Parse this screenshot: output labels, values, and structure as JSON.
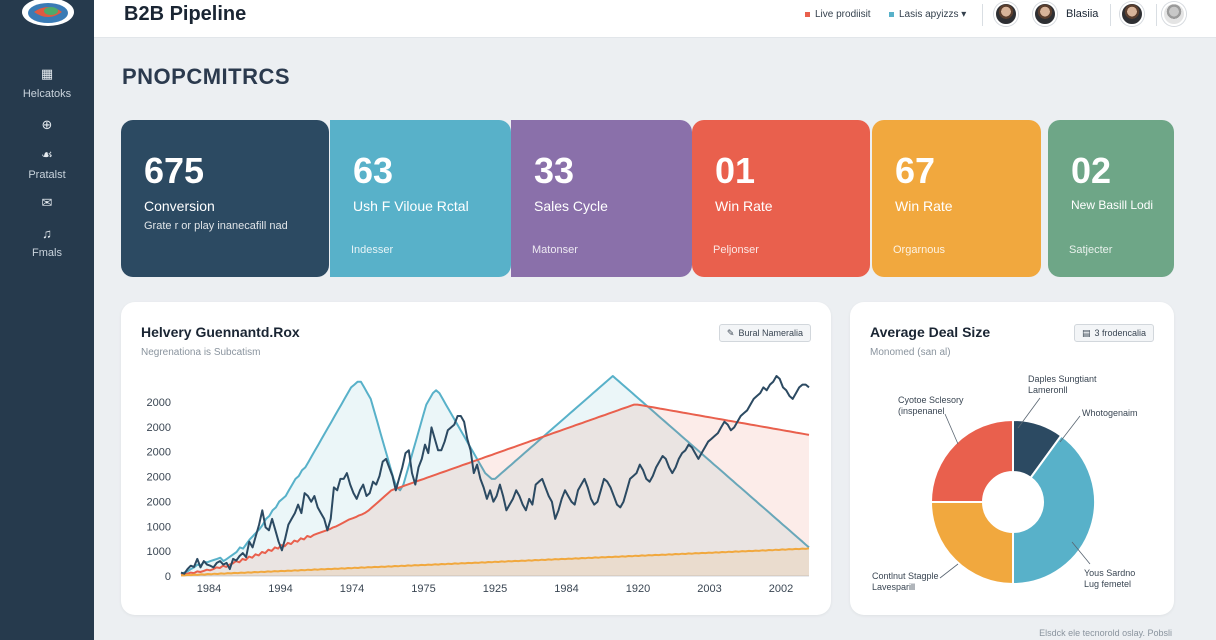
{
  "colors": {
    "sidebar": "#263a4d",
    "navy": "#2c4a62",
    "teal": "#58b1c9",
    "purple": "#8a70aa",
    "red": "#e9604d",
    "orange": "#f1a83e",
    "green": "#6ea687"
  },
  "topbar": {
    "app_title": "B2B Pipeline",
    "legend": [
      {
        "label": "Live prodiisit",
        "color": "#e9604d"
      },
      {
        "label": "Lasis apyizzs",
        "color": "#58b1c9"
      }
    ],
    "user_name": "Blasiia"
  },
  "sidebar": {
    "logo": "logo-icon",
    "items": [
      {
        "icon": "grid-icon",
        "glyph": "▦",
        "label": "Helcatoks"
      },
      {
        "icon": "target-icon",
        "glyph": "⊕",
        "label": ""
      },
      {
        "icon": "people-icon",
        "glyph": "☙",
        "label": "Pratalst"
      },
      {
        "icon": "mail-icon",
        "glyph": "✉",
        "label": ""
      },
      {
        "icon": "music-icon",
        "glyph": "♫",
        "label": "Fmals"
      }
    ]
  },
  "section_title": "PNOPCMITRCS",
  "kpis": [
    {
      "value": "675",
      "label": "Conversion",
      "sub": "Grate r or play inanecafill nad",
      "foot": "",
      "color": "#2c4a62"
    },
    {
      "value": "63",
      "label": "Ush F Viloue Rctal",
      "sub": "",
      "foot": "Indesser",
      "color": "#58b1c9"
    },
    {
      "value": "33",
      "label": "Sales Cycle",
      "sub": "",
      "foot": "Matonser",
      "color": "#8a70aa"
    },
    {
      "value": "01",
      "label": "Win Rate",
      "sub": "",
      "foot": "Peljonser",
      "color": "#e9604d"
    },
    {
      "value": "67",
      "label": "Win Rate",
      "sub": "",
      "foot": "Orgarnous",
      "color": "#f1a83e"
    },
    {
      "value": "02",
      "label": "New Basill Lodi",
      "sub": "",
      "foot": "Satjecter",
      "color": "#6ea687"
    }
  ],
  "line_card": {
    "title": "Helvery Guennantd.Rox",
    "subtitle": "Negrenationa is Subcatism",
    "chip": "Bural Nameralia",
    "chip_icon": "tag-icon"
  },
  "pie_card": {
    "title": "Average Deal Size",
    "subtitle": "Monomed (san al)",
    "chip": "3 frodencalia",
    "chip_icon": "list-icon"
  },
  "footer": "Elsdck ele tecnorold oslay.  Pobsli",
  "chart_data": [
    {
      "type": "area",
      "title": "Helvery Guennantd.Rox",
      "xlabel": "",
      "ylabel": "",
      "x_tick_labels": [
        "1984",
        "1994",
        "1974",
        "1975",
        "1925",
        "1984",
        "1920",
        "2003",
        "2002"
      ],
      "y_tick_labels": [
        "0",
        "1000",
        "1000",
        "2000",
        "2000",
        "2000",
        "2000",
        "2000"
      ],
      "ylim": [
        0,
        3500
      ],
      "series": [
        {
          "name": "navy",
          "color": "#2c4a62",
          "fill": false,
          "values": [
            60,
            40,
            120,
            180,
            160,
            300,
            150,
            260,
            200,
            180,
            150,
            230,
            260,
            200,
            230,
            120,
            300,
            270,
            350,
            400,
            330,
            600,
            500,
            700,
            900,
            1150,
            850,
            800,
            1000,
            800,
            600,
            450,
            650,
            900,
            1000,
            1100,
            1250,
            1100,
            1450,
            1400,
            1300,
            1400,
            1200,
            1100,
            1000,
            800,
            1000,
            1550,
            1500,
            1700,
            1700,
            1800,
            1600,
            1450,
            1350,
            1500,
            1600,
            1400,
            1450,
            1650,
            1600,
            1750,
            2000,
            2050,
            1900,
            1750,
            1500,
            1700,
            1900,
            2150,
            2200,
            1800,
            1600,
            1900,
            2050,
            2300,
            2150,
            2600,
            2400,
            2200,
            2200,
            2350,
            2550,
            2600,
            2650,
            2800,
            2800,
            2700,
            2400,
            2200,
            1800,
            1950,
            1700,
            1550,
            1350,
            1500,
            1300,
            1400,
            1600,
            1400,
            1150,
            1250,
            1350,
            1500,
            1400,
            1250,
            1150,
            1350,
            1250,
            1600,
            1650,
            1700,
            1550,
            1400,
            1300,
            1000,
            1150,
            1350,
            1500,
            1400,
            1300,
            1250,
            1500,
            1600,
            1700,
            1550,
            1350,
            1250,
            1300,
            1500,
            1700,
            1650,
            1550,
            1400,
            1250,
            1200,
            1300,
            1500,
            1700,
            1750,
            1800,
            1950,
            1850,
            1700,
            1650,
            1750,
            1900,
            2000,
            2100,
            2050,
            1900,
            1800,
            1900,
            2050,
            2150,
            2200,
            2300,
            2250,
            2150,
            2050,
            2150,
            2250,
            2350,
            2400,
            2450,
            2500,
            2600,
            2700,
            2650,
            2550,
            2600,
            2700,
            2800,
            2850,
            2900,
            3000,
            3100,
            3150,
            3200,
            3300,
            3250,
            3350,
            3400,
            3500,
            3450,
            3300,
            3250,
            3150,
            3100,
            3200,
            3300,
            3350,
            3350,
            3300
          ]
        },
        {
          "name": "teal",
          "color": "#58b1c9",
          "fill": true,
          "values": [
            40,
            60,
            80,
            120,
            150,
            200,
            180,
            250,
            240,
            260,
            280,
            300,
            320,
            260,
            300,
            340,
            380,
            420,
            500,
            480,
            560,
            640,
            700,
            760,
            820,
            900,
            1000,
            1050,
            1150,
            1200,
            1300,
            1350,
            1400,
            1500,
            1600,
            1700,
            1750,
            1850,
            1900,
            2000,
            2100,
            2200,
            2300,
            2400,
            2500,
            2600,
            2700,
            2800,
            2900,
            3000,
            3100,
            3200,
            3300,
            3350,
            3400,
            3400,
            3300,
            3200,
            3100,
            2900,
            2700,
            2500,
            2300,
            2100,
            1900,
            1700,
            1550,
            1500,
            1600,
            1800,
            2000,
            2200,
            2400,
            2600,
            2800,
            3000,
            3100,
            3200,
            3250,
            3200,
            3100,
            3000,
            2900,
            2800,
            2700,
            2600,
            2500,
            2400,
            2300,
            2200,
            2100,
            2000,
            1900,
            1800,
            1750,
            1700,
            1700,
            1750,
            1800,
            1850,
            1900,
            1950,
            2000,
            2050,
            2100,
            2150,
            2200,
            2250,
            2300,
            2350,
            2400,
            2450,
            2500,
            2550,
            2600,
            2650,
            2700,
            2750,
            2800,
            2850,
            2900,
            2950,
            3000,
            3050,
            3100,
            3150,
            3200,
            3250,
            3300,
            3350,
            3400,
            3450,
            3500,
            3450,
            3400,
            3350,
            3300,
            3250,
            3200,
            3150,
            3100,
            3050,
            3000,
            2950,
            2900,
            2850,
            2800,
            2750,
            2700,
            2650,
            2600,
            2550,
            2500,
            2450,
            2400,
            2350,
            2300,
            2250,
            2200,
            2150,
            2100,
            2050,
            2000,
            1950,
            1900,
            1850,
            1800,
            1750,
            1700,
            1650,
            1600,
            1550,
            1500,
            1450,
            1400,
            1350,
            1300,
            1250,
            1200,
            1150,
            1100,
            1050,
            1000,
            950,
            900,
            850,
            800,
            750,
            700,
            650,
            600,
            550,
            500
          ]
        },
        {
          "name": "red",
          "color": "#e9604d",
          "fill": true,
          "values": [
            20,
            30,
            40,
            60,
            50,
            80,
            70,
            90,
            110,
            100,
            120,
            150,
            140,
            180,
            160,
            200,
            220,
            260,
            240,
            300,
            280,
            340,
            320,
            380,
            360,
            420,
            400,
            460,
            440,
            500,
            480,
            540,
            520,
            580,
            560,
            620,
            600,
            660,
            640,
            700,
            680,
            720,
            740,
            760,
            780,
            800,
            820,
            850,
            870,
            900,
            930,
            960,
            990,
            1010,
            1030,
            1060,
            1080,
            1110,
            1150,
            1200,
            1250,
            1300,
            1350,
            1400,
            1450,
            1500,
            1520,
            1540,
            1560,
            1580,
            1600,
            1620,
            1640,
            1660,
            1680,
            1700,
            1720,
            1740,
            1760,
            1780,
            1800,
            1820,
            1840,
            1860,
            1880,
            1900,
            1920,
            1940,
            1960,
            1980,
            2000,
            2020,
            2040,
            2060,
            2080,
            2100,
            2120,
            2140,
            2160,
            2180,
            2200,
            2220,
            2240,
            2260,
            2280,
            2300,
            2320,
            2340,
            2360,
            2380,
            2400,
            2420,
            2440,
            2460,
            2480,
            2500,
            2520,
            2540,
            2560,
            2580,
            2600,
            2620,
            2640,
            2660,
            2680,
            2700,
            2720,
            2740,
            2760,
            2780,
            2800,
            2820,
            2840,
            2860,
            2880,
            2900,
            2920,
            2940,
            2960,
            2980,
            3000,
            3000,
            2990,
            2980,
            2970,
            2960,
            2950,
            2940,
            2930,
            2920,
            2910,
            2900,
            2890,
            2880,
            2870,
            2860,
            2850,
            2840,
            2830,
            2820,
            2810,
            2800,
            2790,
            2780,
            2770,
            2760,
            2750,
            2740,
            2730,
            2720,
            2710,
            2700,
            2690,
            2680,
            2670,
            2660,
            2650,
            2640,
            2630,
            2620,
            2610,
            2600,
            2590,
            2580,
            2570,
            2560,
            2550,
            2540,
            2530,
            2520,
            2510,
            2500,
            2490,
            2480,
            2470
          ]
        },
        {
          "name": "orange",
          "color": "#f1a83e",
          "fill": true,
          "values": [
            10,
            10,
            20,
            15,
            25,
            20,
            30,
            25,
            35,
            30,
            40,
            35,
            45,
            40,
            50,
            45,
            55,
            50,
            60,
            55,
            65,
            60,
            70,
            65,
            75,
            70,
            80,
            75,
            85,
            80,
            90,
            85,
            95,
            90,
            100,
            95,
            105,
            100,
            110,
            105,
            115,
            110,
            120,
            115,
            125,
            120,
            130,
            125,
            135,
            130,
            140,
            135,
            145,
            140,
            150,
            145,
            155,
            150,
            160,
            155,
            165,
            160,
            170,
            165,
            175,
            170,
            180,
            175,
            185,
            180,
            190,
            185,
            195,
            190,
            200,
            195,
            205,
            200,
            210,
            205,
            215,
            210,
            220,
            215,
            225,
            220,
            230,
            225,
            235,
            230,
            240,
            235,
            245,
            240,
            250,
            245,
            255,
            250,
            260,
            255,
            265,
            260,
            270,
            265,
            275,
            270,
            280,
            275,
            285,
            280,
            290,
            285,
            295,
            290,
            300,
            295,
            305,
            300,
            310,
            305,
            315,
            310,
            320,
            315,
            325,
            320,
            330,
            325,
            335,
            330,
            340,
            335,
            345,
            340,
            350,
            345,
            355,
            350,
            360,
            355,
            365,
            360,
            370,
            365,
            375,
            370,
            380,
            375,
            385,
            380,
            390,
            385,
            395,
            390,
            400,
            395,
            405,
            400,
            410,
            405,
            415,
            410,
            420,
            415,
            425,
            420,
            430,
            425,
            435,
            430,
            440,
            435,
            445,
            440,
            450,
            445,
            455,
            450,
            460,
            455,
            465,
            460,
            470,
            465,
            475,
            470,
            480,
            475,
            485
          ]
        }
      ]
    },
    {
      "type": "pie",
      "title": "Average Deal Size",
      "donut": true,
      "slices": [
        {
          "label": "Daples Sungtiant Lameronll",
          "value": 10,
          "color": "#2c4a62"
        },
        {
          "label": "Whotogenaim",
          "value": 40,
          "color": "#58b1c9"
        },
        {
          "label": "Yous Sardno Lug femetel",
          "value": 0,
          "color": "#58b1c9"
        },
        {
          "label": "Contlnut Stagple Lavesparill",
          "value": 25,
          "color": "#f1a83e"
        },
        {
          "label": "Cyotoe Sclesory (inspenanel",
          "value": 25,
          "color": "#e9604d"
        }
      ]
    }
  ]
}
